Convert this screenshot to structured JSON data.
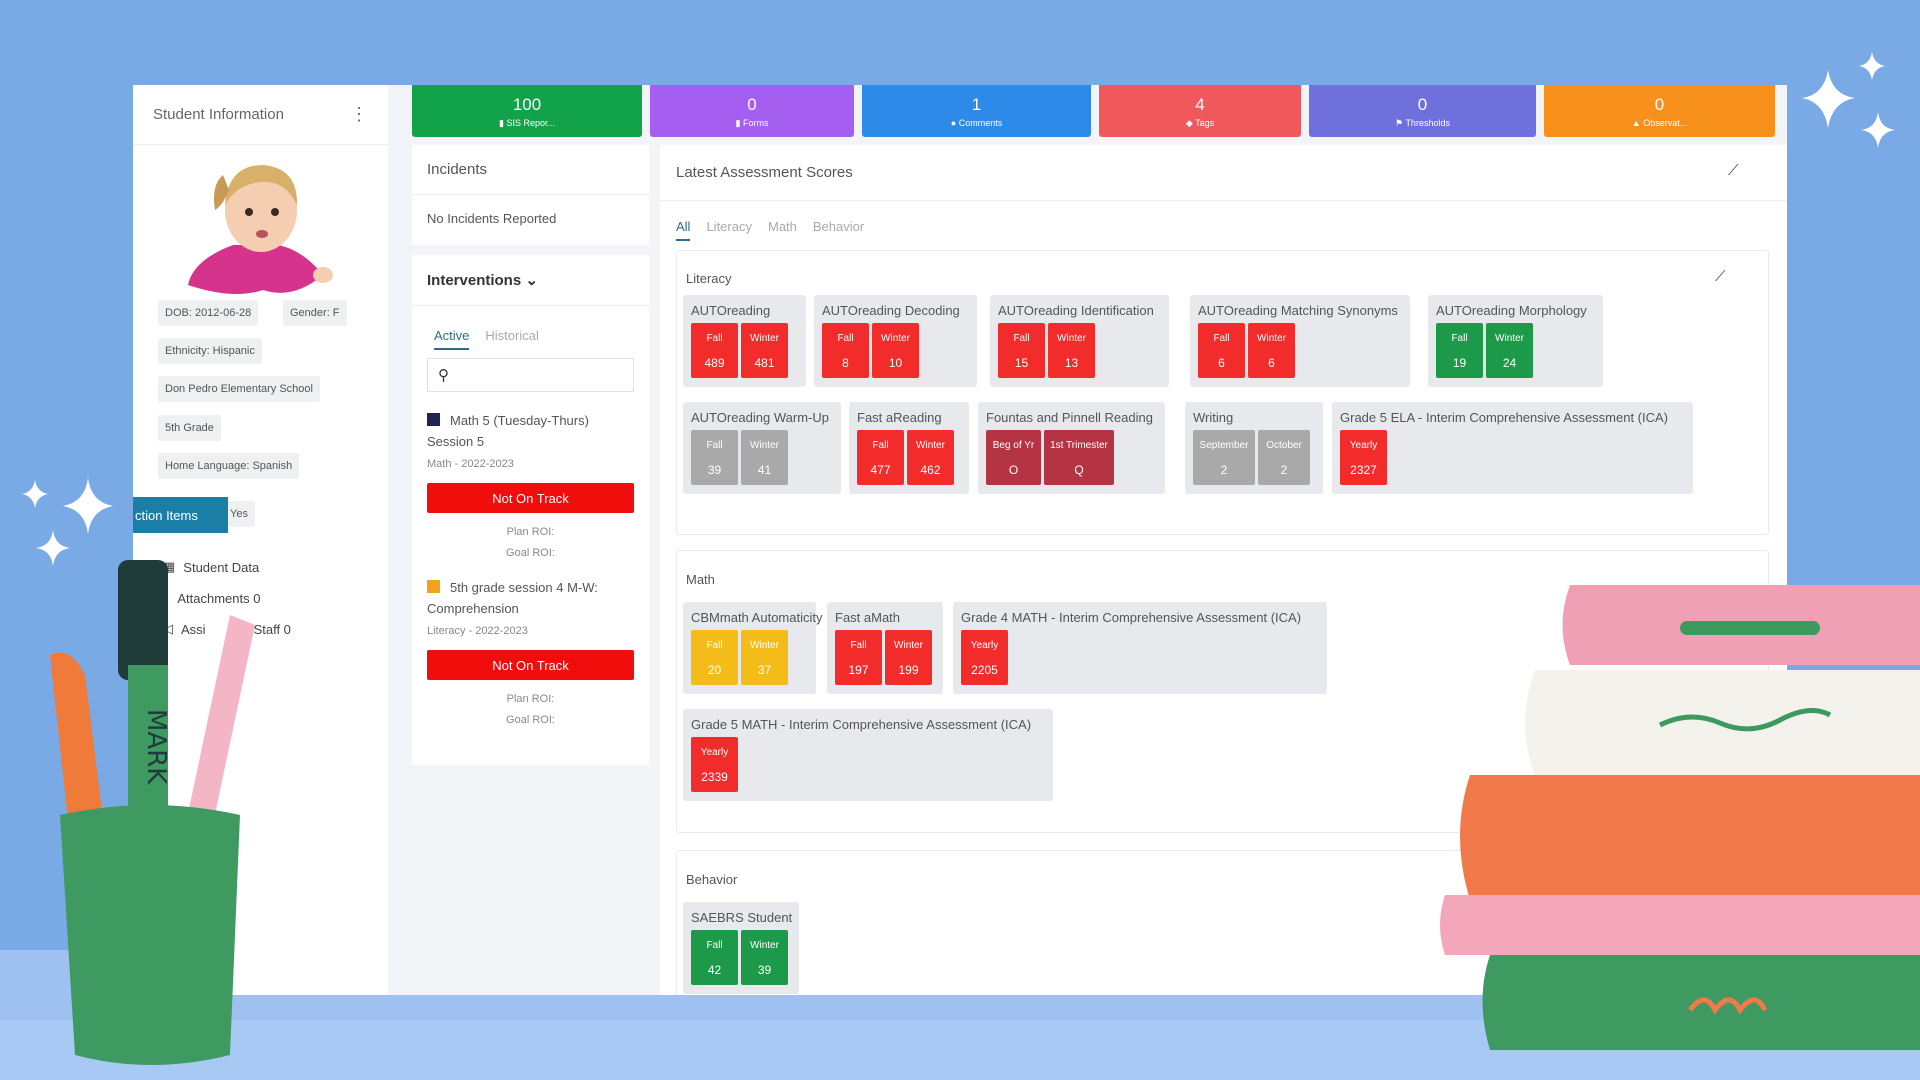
{
  "sidebar": {
    "title": "Student Information",
    "chips": {
      "dob": "DOB: 2012-06-28",
      "gender": "Gender: F",
      "ethnicity": "Ethnicity: Hispanic",
      "school": "Don Pedro Elementary School",
      "grade": "5th Grade",
      "language": "Home Language: Spanish",
      "yes": "Yes"
    },
    "action_items": "ction Items",
    "links": {
      "student_data": "Student Data",
      "attachments": "Attachments 0",
      "assigned": "Assi",
      "staff": "Staff 0"
    }
  },
  "stats": [
    {
      "value": "100",
      "label": "SIS Repor...",
      "color": "#12a24a"
    },
    {
      "value": "0",
      "label": "Forms",
      "color": "#a55ff0"
    },
    {
      "value": "1",
      "label": "Comments",
      "color": "#2d8ae8"
    },
    {
      "value": "4",
      "label": "Tags",
      "color": "#f0595b"
    },
    {
      "value": "0",
      "label": "Thresholds",
      "color": "#7070dc"
    },
    {
      "value": "0",
      "label": "Observat...",
      "color": "#f7901a"
    }
  ],
  "incidents": {
    "title": "Incidents",
    "empty": "No Incidents Reported"
  },
  "interventions": {
    "title": "Interventions",
    "tabs": {
      "active": "Active",
      "historical": "Historical"
    },
    "items": [
      {
        "name": "Math 5 (Tuesday-Thurs) Session 5",
        "meta": "Math - 2022-2023",
        "status": "Not On Track",
        "plan": "Plan ROI:",
        "goal": "Goal ROI:",
        "color": "#1f2451"
      },
      {
        "name": "5th grade session 4 M-W: Comprehension",
        "meta": "Literacy - 2022-2023",
        "status": "Not On Track",
        "plan": "Plan ROI:",
        "goal": "Goal ROI:",
        "color": "#f4a21b"
      }
    ]
  },
  "assessments": {
    "title": "Latest Assessment Scores",
    "tabs": {
      "all": "All",
      "literacy": "Literacy",
      "math": "Math",
      "behavior": "Behavior"
    },
    "sections": {
      "literacy": "Literacy",
      "math": "Math",
      "behavior": "Behavior"
    },
    "cards": {
      "autoreading": {
        "title": "AUTOreading",
        "t1": "Fall",
        "v1": "489",
        "t2": "Winter",
        "v2": "481"
      },
      "decoding": {
        "title": "AUTOreading Decoding",
        "t1": "Fall",
        "v1": "8",
        "t2": "Winter",
        "v2": "10"
      },
      "identification": {
        "title": "AUTOreading Identification",
        "t1": "Fall",
        "v1": "15",
        "t2": "Winter",
        "v2": "13"
      },
      "synonyms": {
        "title": "AUTOreading Matching Synonyms",
        "t1": "Fall",
        "v1": "6",
        "t2": "Winter",
        "v2": "6"
      },
      "morphology": {
        "title": "AUTOreading Morphology",
        "t1": "Fall",
        "v1": "19",
        "t2": "Winter",
        "v2": "24"
      },
      "warmup": {
        "title": "AUTOreading Warm-Up",
        "t1": "Fall",
        "v1": "39",
        "t2": "Winter",
        "v2": "41"
      },
      "fastreading": {
        "title": "Fast aReading",
        "t1": "Fall",
        "v1": "477",
        "t2": "Winter",
        "v2": "462"
      },
      "fountas": {
        "title": "Fountas and Pinnell Reading",
        "t1": "Beg of Yr",
        "v1": "O",
        "t2": "1st Trimester",
        "v2": "Q"
      },
      "writing": {
        "title": "Writing",
        "t1": "September",
        "v1": "2",
        "t2": "October",
        "v2": "2"
      },
      "ela": {
        "title": "Grade 5 ELA - Interim Comprehensive Assessment (ICA)",
        "t1": "Yearly",
        "v1": "2327"
      },
      "cbm": {
        "title": "CBMmath Automaticity",
        "t1": "Fall",
        "v1": "20",
        "t2": "Winter",
        "v2": "37"
      },
      "fastmath": {
        "title": "Fast aMath",
        "t1": "Fall",
        "v1": "197",
        "t2": "Winter",
        "v2": "199"
      },
      "g4math": {
        "title": "Grade 4 MATH - Interim Comprehensive Assessment (ICA)",
        "t1": "Yearly",
        "v1": "2205"
      },
      "g5math": {
        "title": "Grade 5 MATH - Interim Comprehensive Assessment (ICA)",
        "t1": "Yearly",
        "v1": "2339"
      },
      "saebrs": {
        "title": "SAEBRS Student",
        "t1": "Fall",
        "v1": "42",
        "t2": "Winter",
        "v2": "39"
      }
    }
  },
  "decor": {
    "marker_text": "MARK"
  }
}
